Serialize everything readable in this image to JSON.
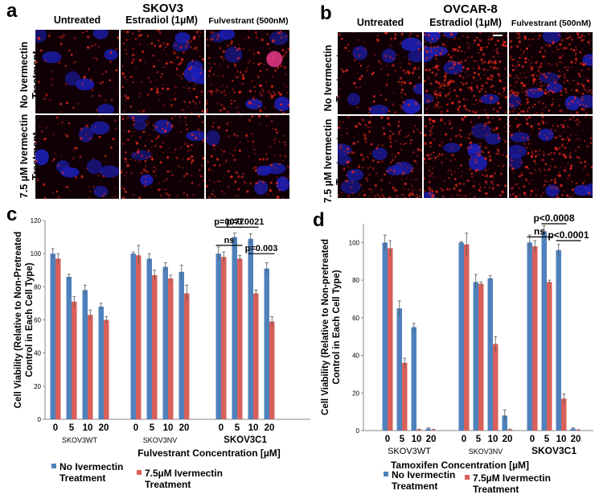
{
  "panel_a": {
    "label": "a",
    "title": "SKOV3",
    "columns": [
      "Untreated",
      "Estradiol (1µM)",
      "Fulvestrant (500nM)"
    ],
    "rows": [
      [
        "No Ivermectin",
        "Treatment"
      ],
      [
        "7.5 µM Ivermectin",
        "Treatment"
      ]
    ]
  },
  "panel_b": {
    "label": "b",
    "title": "OVCAR-8",
    "columns": [
      "Untreated",
      "Estradiol (1µM)",
      "Fulvestrant (500nM)"
    ],
    "rows": [
      [
        "No Ivermectin",
        "Treatment"
      ],
      [
        "7.5 µM Ivermectin",
        "Treatment"
      ]
    ]
  },
  "panel_c": {
    "label": "c"
  },
  "panel_d": {
    "label": "d"
  },
  "colors": {
    "blue": "#4f81bd",
    "red": "#d9605a",
    "nuclei": "#1c1fb8",
    "stain": "#e2261c"
  },
  "chart_data": [
    {
      "type": "bar",
      "panel": "c",
      "ylabel": "Cell Viability (Relative to Non-Pretreated Control in Each Cell Type)",
      "xlabel": "Fulvestrant Concentration [µM]",
      "ylim": [
        0,
        120
      ],
      "yticks": [
        0,
        20,
        40,
        60,
        80,
        100,
        120
      ],
      "groups": [
        "SKOV3WT",
        "SKOV3NV",
        "SKOV3C1"
      ],
      "categories": [
        "0",
        "5",
        "10",
        "20"
      ],
      "series": [
        {
          "name": [
            "No Ivermectin",
            "Treatment"
          ],
          "values": [
            [
              100,
              86,
              78,
              68
            ],
            [
              100,
              97,
              92,
              89
            ],
            [
              100,
              110,
              109,
              91
            ]
          ],
          "errors": [
            [
              3,
              1.5,
              3,
              2
            ],
            [
              1,
              3,
              2.5,
              4
            ],
            [
              4,
              2.5,
              3,
              3.5
            ]
          ]
        },
        {
          "name": [
            "7.5µM Ivermectin",
            "Treatment"
          ],
          "values": [
            [
              97,
              71,
              63,
              60
            ],
            [
              99,
              87,
              85,
              76
            ],
            [
              98,
              97,
              76,
              59
            ]
          ],
          "errors": [
            [
              3,
              3,
              3,
              2
            ],
            [
              6,
              3,
              2,
              5
            ],
            [
              3,
              2,
              2,
              3
            ]
          ]
        }
      ],
      "annotations": [
        {
          "text": "ns",
          "group": 2,
          "from": 0,
          "to": 1,
          "y": 105
        },
        {
          "text": "p=0077",
          "group": 2,
          "from": 0,
          "to": 1,
          "y": 116
        },
        {
          "text": "p=0.0021",
          "group": 2,
          "from": 1,
          "to": 2,
          "y": 116
        },
        {
          "text": "p=0.003",
          "group": 2,
          "from": 2,
          "to": 3,
          "y": 100
        }
      ]
    },
    {
      "type": "bar",
      "panel": "d",
      "ylabel": "Cell Viability (Relative to Non-pretreated Control in Each Cell Type)",
      "xlabel": "Tamoxifen Concentration [µM]",
      "ylim": [
        0,
        110
      ],
      "yticks": [
        0,
        20,
        40,
        60,
        80,
        100
      ],
      "groups": [
        "SKOV3WT",
        "SKOV3NV",
        "SKOV3C1"
      ],
      "categories": [
        "0",
        "5",
        "10",
        "20"
      ],
      "series": [
        {
          "name": [
            "No Ivermectin",
            "Treatment"
          ],
          "values": [
            [
              100,
              65,
              55,
              1
            ],
            [
              100,
              79,
              81,
              8
            ],
            [
              100,
              106,
              96,
              1
            ]
          ],
          "errors": [
            [
              4,
              4,
              2,
              0.5
            ],
            [
              0.5,
              4,
              1.5,
              3
            ],
            [
              4,
              3,
              3,
              0.5
            ]
          ]
        },
        {
          "name": [
            "7.5µM Ivermectin",
            "Treatment"
          ],
          "values": [
            [
              97,
              36,
              0.5,
              0.3
            ],
            [
              99,
              78,
              46,
              0.5
            ],
            [
              98,
              79,
              17,
              0.3
            ]
          ],
          "errors": [
            [
              4,
              2.5,
              0.3,
              0.3
            ],
            [
              6,
              1,
              4,
              0.3
            ],
            [
              3,
              1,
              2.5,
              0.2
            ]
          ]
        }
      ],
      "annotations": [
        {
          "text": "ns",
          "group": 2,
          "from": 0,
          "to": 1,
          "y": 103
        },
        {
          "text": "p<0.0008",
          "group": 2,
          "from": 1,
          "to": 2,
          "y": 110
        },
        {
          "text": "p<0.0001",
          "group": 2,
          "from": 2,
          "to": 3,
          "y": 101
        }
      ]
    }
  ]
}
